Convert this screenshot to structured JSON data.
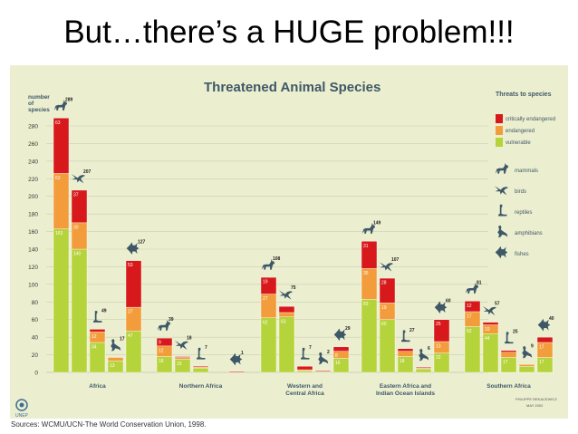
{
  "slide": {
    "title": "But…there’s a HUGE problem!!!",
    "sources": "Sources: WCMU/UCN-The World Conservation Union, 1998."
  },
  "chart_data": {
    "type": "bar",
    "title": "Threatened Animal Species",
    "ylabel": "number of species",
    "ylim": [
      0,
      280
    ],
    "yticks": [
      0,
      20,
      40,
      60,
      80,
      100,
      120,
      140,
      160,
      180,
      200,
      220,
      240,
      260,
      280
    ],
    "grid": true,
    "legend_position": "right",
    "legend_title": "Threats to species",
    "status_legend": [
      {
        "key": "critically",
        "label": "critically endangered",
        "color": "#d7191c"
      },
      {
        "key": "endangered",
        "label": "endangered",
        "color": "#f39c3c"
      },
      {
        "key": "vulnerable",
        "label": "vulnerable",
        "color": "#b5d33a"
      }
    ],
    "animal_legend": [
      {
        "key": "mammals",
        "label": "mammals",
        "icon": "mammal-icon"
      },
      {
        "key": "birds",
        "label": "birds",
        "icon": "bird-icon"
      },
      {
        "key": "reptiles",
        "label": "reptiles",
        "icon": "reptile-icon"
      },
      {
        "key": "amphibians",
        "label": "amphibians",
        "icon": "amphibian-icon"
      },
      {
        "key": "fishes",
        "label": "fishes",
        "icon": "fish-icon"
      }
    ],
    "series_order": [
      "mammals",
      "birds",
      "reptiles",
      "amphibians",
      "fishes"
    ],
    "regions": [
      {
        "name": "Africa",
        "bars": [
          {
            "animal": "mammals",
            "total": 289,
            "vulnerable": 163,
            "endangered": 63,
            "critically": 63
          },
          {
            "animal": "birds",
            "total": 207,
            "vulnerable": 140,
            "endangered": 30,
            "critically": 37
          },
          {
            "animal": "reptiles",
            "total": 49,
            "vulnerable": 34,
            "endangered": 12,
            "critically": 3
          },
          {
            "animal": "amphibians",
            "total": 17,
            "vulnerable": 13,
            "endangered": 4,
            "critically": 0
          },
          {
            "animal": "fishes",
            "total": 127,
            "vulnerable": 47,
            "endangered": 27,
            "critically": 53
          }
        ]
      },
      {
        "name": "Northern Africa",
        "bars": [
          {
            "animal": "mammals",
            "total": 39,
            "vulnerable": 18,
            "endangered": 12,
            "critically": 9
          },
          {
            "animal": "birds",
            "total": 18,
            "vulnerable": 15,
            "endangered": 2,
            "critically": 1
          },
          {
            "animal": "reptiles",
            "total": 7,
            "vulnerable": 5,
            "endangered": 1,
            "critically": 1
          },
          {
            "animal": "amphibians",
            "total": 0,
            "vulnerable": 0,
            "endangered": 0,
            "critically": 0
          },
          {
            "animal": "fishes",
            "total": 1,
            "vulnerable": 0,
            "endangered": 0,
            "critically": 1
          }
        ]
      },
      {
        "name": "Western and Central Africa",
        "bars": [
          {
            "animal": "mammals",
            "total": 108,
            "vulnerable": 62,
            "endangered": 27,
            "critically": 19
          },
          {
            "animal": "birds",
            "total": 75,
            "vulnerable": 63,
            "endangered": 5,
            "critically": 7
          },
          {
            "animal": "reptiles",
            "total": 7,
            "vulnerable": 2,
            "endangered": 1,
            "critically": 4
          },
          {
            "animal": "amphibians",
            "total": 2,
            "vulnerable": 1,
            "endangered": 0,
            "critically": 1
          },
          {
            "animal": "fishes",
            "total": 29,
            "vulnerable": 16,
            "endangered": 8,
            "critically": 5
          }
        ]
      },
      {
        "name": "Eastern Africa and Indian Ocean Islands",
        "bars": [
          {
            "animal": "mammals",
            "total": 149,
            "vulnerable": 83,
            "endangered": 35,
            "critically": 31
          },
          {
            "animal": "birds",
            "total": 107,
            "vulnerable": 60,
            "endangered": 19,
            "critically": 28
          },
          {
            "animal": "reptiles",
            "total": 27,
            "vulnerable": 18,
            "endangered": 6,
            "critically": 3
          },
          {
            "animal": "amphibians",
            "total": 6,
            "vulnerable": 4,
            "endangered": 1,
            "critically": 1
          },
          {
            "animal": "fishes",
            "total": 60,
            "vulnerable": 22,
            "endangered": 13,
            "critically": 25
          }
        ]
      },
      {
        "name": "Southern Africa",
        "bars": [
          {
            "animal": "mammals",
            "total": 81,
            "vulnerable": 52,
            "endangered": 17,
            "critically": 12
          },
          {
            "animal": "birds",
            "total": 57,
            "vulnerable": 44,
            "endangered": 10,
            "critically": 3
          },
          {
            "animal": "reptiles",
            "total": 25,
            "vulnerable": 17,
            "endangered": 6,
            "critically": 2
          },
          {
            "animal": "amphibians",
            "total": 9,
            "vulnerable": 7,
            "endangered": 2,
            "critically": 0
          },
          {
            "animal": "fishes",
            "total": 40,
            "vulnerable": 17,
            "endangered": 17,
            "critically": 6
          }
        ]
      }
    ],
    "region_label_lines": [
      [
        "Africa"
      ],
      [
        "Northern Africa"
      ],
      [
        "Western and",
        "Central Africa"
      ],
      [
        "Eastern Africa and",
        "Indian Ocean Islands"
      ],
      [
        "Southern Africa"
      ]
    ],
    "logo_text": "UNEP",
    "credit": "PHILIPPE REKACEWICZ",
    "credit_date": "MAY 2002"
  }
}
